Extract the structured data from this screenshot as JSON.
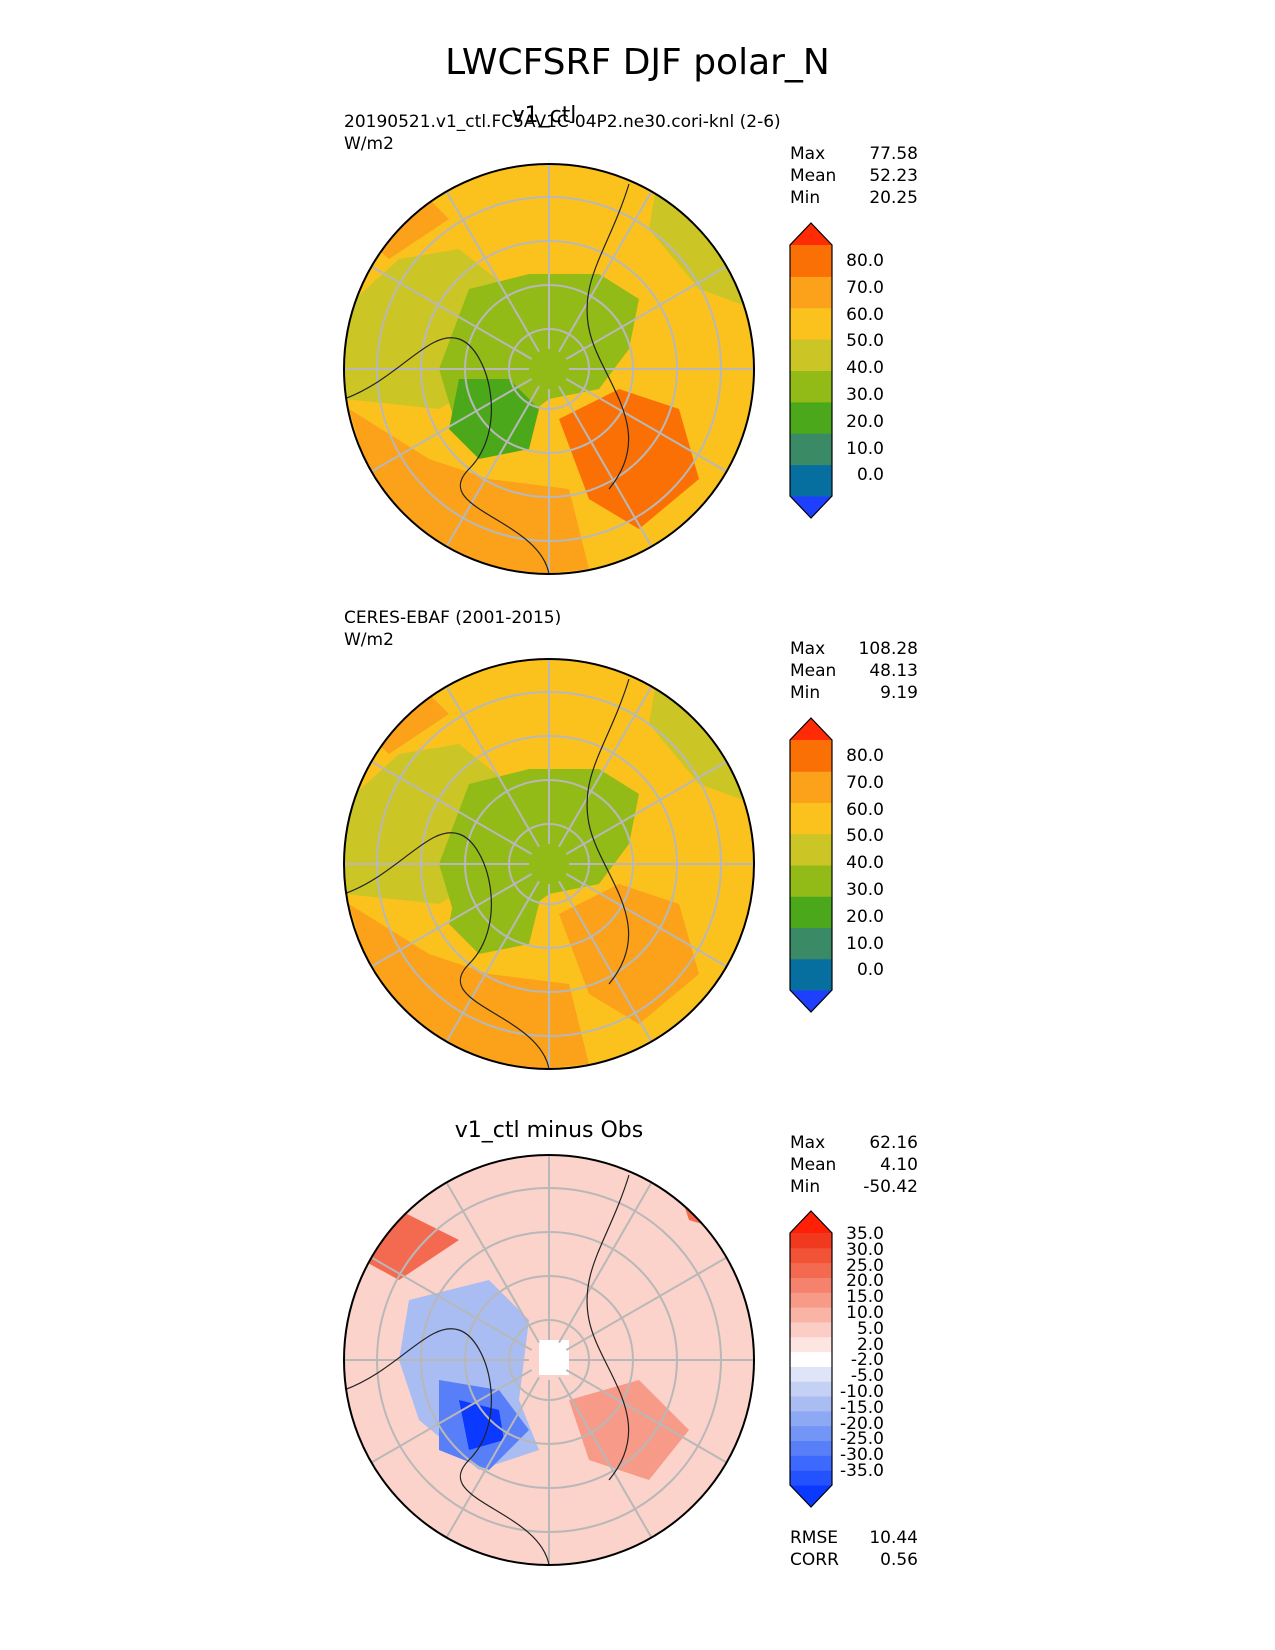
{
  "figure": {
    "title": "LWCFSRF DJF polar_N"
  },
  "chart_data": [
    {
      "type": "heatmap",
      "projection": "north-polar-stereographic",
      "title": "v1_ctl",
      "source": "20190521.v1_ctl.FC5AV1C-04P2.ne30.cori-knl (2-6)",
      "units": "W/m2",
      "stats": [
        {
          "label": "Max",
          "value": "77.58"
        },
        {
          "label": "Mean",
          "value": "52.23"
        },
        {
          "label": "Min",
          "value": "20.25"
        }
      ],
      "colorbar": {
        "labels": [
          "80.0",
          "70.0",
          "60.0",
          "50.0",
          "40.0",
          "30.0",
          "20.0",
          "10.0",
          "0.0"
        ],
        "colors": [
          "#1f3fff",
          "#076ea0",
          "#3a8a66",
          "#4ba81a",
          "#92bb18",
          "#cbc626",
          "#fbc21e",
          "#fba11a",
          "#fb7004",
          "#ff2b05"
        ],
        "extend": "both"
      }
    },
    {
      "type": "heatmap",
      "projection": "north-polar-stereographic",
      "title": "",
      "source": "CERES-EBAF (2001-2015)",
      "units": "W/m2",
      "stats": [
        {
          "label": "Max",
          "value": "108.28"
        },
        {
          "label": "Mean",
          "value": "48.13"
        },
        {
          "label": "Min",
          "value": "9.19"
        }
      ],
      "colorbar": {
        "labels": [
          "80.0",
          "70.0",
          "60.0",
          "50.0",
          "40.0",
          "30.0",
          "20.0",
          "10.0",
          "0.0"
        ],
        "colors": [
          "#1f3fff",
          "#076ea0",
          "#3a8a66",
          "#4ba81a",
          "#92bb18",
          "#cbc626",
          "#fbc21e",
          "#fba11a",
          "#fb7004",
          "#ff2b05"
        ],
        "extend": "both"
      }
    },
    {
      "type": "heatmap",
      "projection": "north-polar-stereographic",
      "title": "v1_ctl minus Obs",
      "source": "",
      "units": "",
      "stats": [
        {
          "label": "Max",
          "value": "62.16"
        },
        {
          "label": "Mean",
          "value": "4.10"
        },
        {
          "label": "Min",
          "value": "-50.42"
        }
      ],
      "metrics": [
        {
          "label": "RMSE",
          "value": "10.44"
        },
        {
          "label": "CORR",
          "value": "0.56"
        }
      ],
      "colorbar": {
        "labels": [
          "35.0",
          "30.0",
          "25.0",
          "20.0",
          "15.0",
          "10.0",
          "5.0",
          "2.0",
          "-2.0",
          "-5.0",
          "-10.0",
          "-15.0",
          "-20.0",
          "-25.0",
          "-30.0",
          "-35.0"
        ],
        "colors": [
          "#0b39ff",
          "#2552ff",
          "#3e69ff",
          "#587ff7",
          "#7395f6",
          "#8ea9f4",
          "#aabdf3",
          "#c4d1f5",
          "#dfe5f9",
          "#ffffff",
          "#fde6e2",
          "#fbcdc4",
          "#f9b4a6",
          "#f79a88",
          "#f5826c",
          "#f46a50",
          "#f25236",
          "#f0391e",
          "#ff2005"
        ],
        "extend": "both"
      }
    }
  ]
}
